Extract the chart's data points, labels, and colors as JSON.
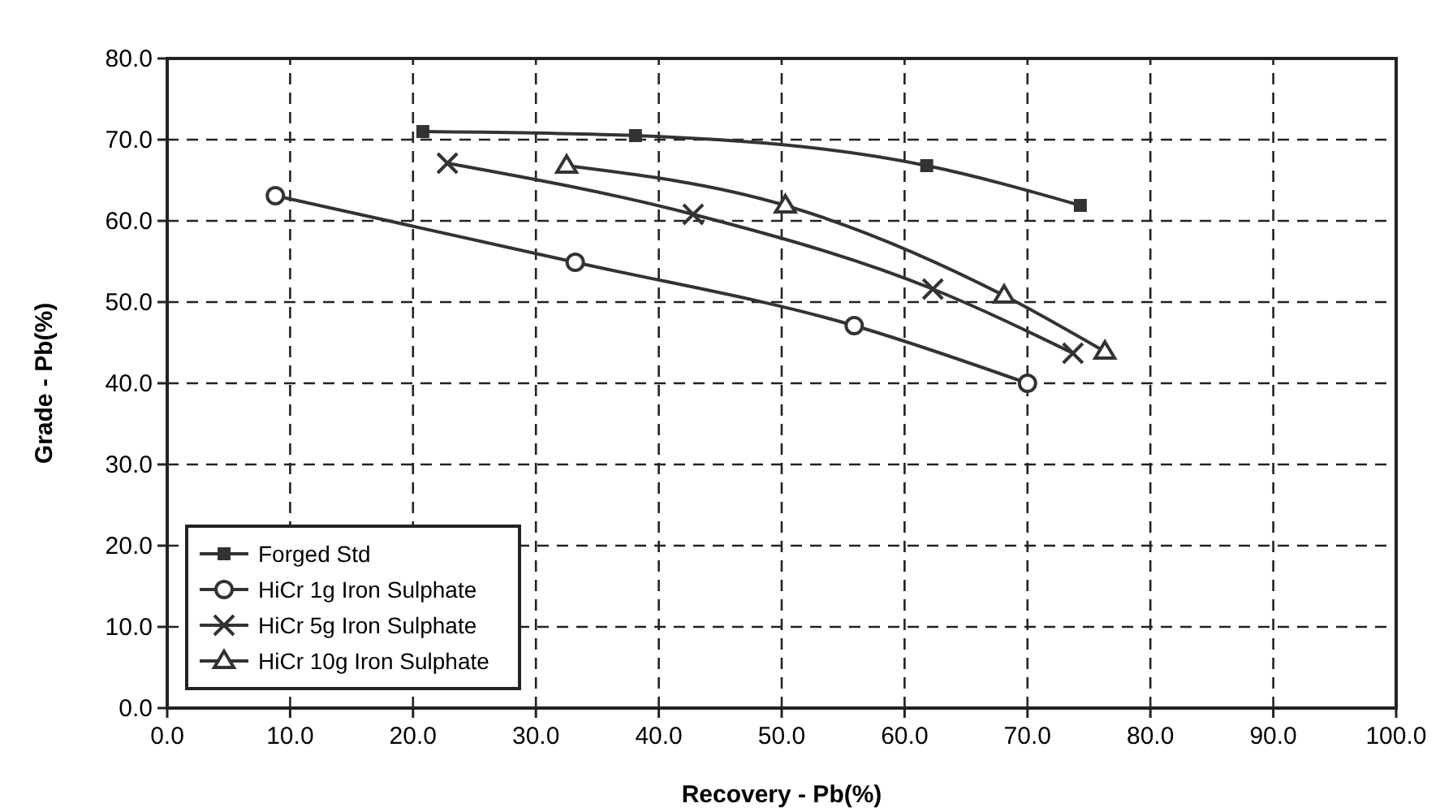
{
  "chart_data": {
    "type": "line",
    "xlabel": "Recovery - Pb(%)",
    "ylabel": "Grade - Pb(%)",
    "xlim": [
      0,
      100
    ],
    "xticks": [
      {
        "value": 0,
        "label": "0.0"
      },
      {
        "value": 10,
        "label": "10.0"
      },
      {
        "value": 20,
        "label": "20.0"
      },
      {
        "value": 30,
        "label": "30.0"
      },
      {
        "value": 40,
        "label": "40.0"
      },
      {
        "value": 50,
        "label": "50.0"
      },
      {
        "value": 60,
        "label": "60.0"
      },
      {
        "value": 70,
        "label": "70.0"
      },
      {
        "value": 80,
        "label": "80.0"
      },
      {
        "value": 90,
        "label": "90.0"
      },
      {
        "value": 100,
        "label": "100.0"
      }
    ],
    "ylim": [
      0,
      80
    ],
    "yticks": [
      {
        "value": 0,
        "label": "0.0"
      },
      {
        "value": 10,
        "label": "10.0"
      },
      {
        "value": 20,
        "label": "20.0"
      },
      {
        "value": 30,
        "label": "30.0"
      },
      {
        "value": 40,
        "label": "40.0"
      },
      {
        "value": 50,
        "label": "50.0"
      },
      {
        "value": 60,
        "label": "60.0"
      },
      {
        "value": 70,
        "label": "70.0"
      },
      {
        "value": 80,
        "label": "80.0"
      }
    ],
    "grid": true,
    "legend": "bottom left",
    "line_style": "solid",
    "series": [
      {
        "name": "Forged Std",
        "color": "#333333",
        "marker": "square",
        "x": [
          20.8,
          38.1,
          61.8,
          74.3
        ],
        "values": [
          71.0,
          70.5,
          66.8,
          61.9
        ]
      },
      {
        "name": "HiCr 1g Iron Sulphate",
        "color": "#333333",
        "marker": "circle",
        "x": [
          8.8,
          33.2,
          55.9,
          70.0
        ],
        "values": [
          63.1,
          54.9,
          47.1,
          40.0
        ]
      },
      {
        "name": "HiCr 5g Iron Sulphate",
        "color": "#333333",
        "marker": "cross",
        "x": [
          22.8,
          42.8,
          62.3,
          73.7
        ],
        "values": [
          67.1,
          60.8,
          51.6,
          43.7
        ]
      },
      {
        "name": "HiCr 10g Iron Sulphate",
        "color": "#333333",
        "marker": "triangle",
        "x": [
          32.5,
          50.3,
          68.1,
          76.3
        ],
        "values": [
          66.8,
          61.9,
          50.8,
          43.9
        ]
      }
    ]
  }
}
